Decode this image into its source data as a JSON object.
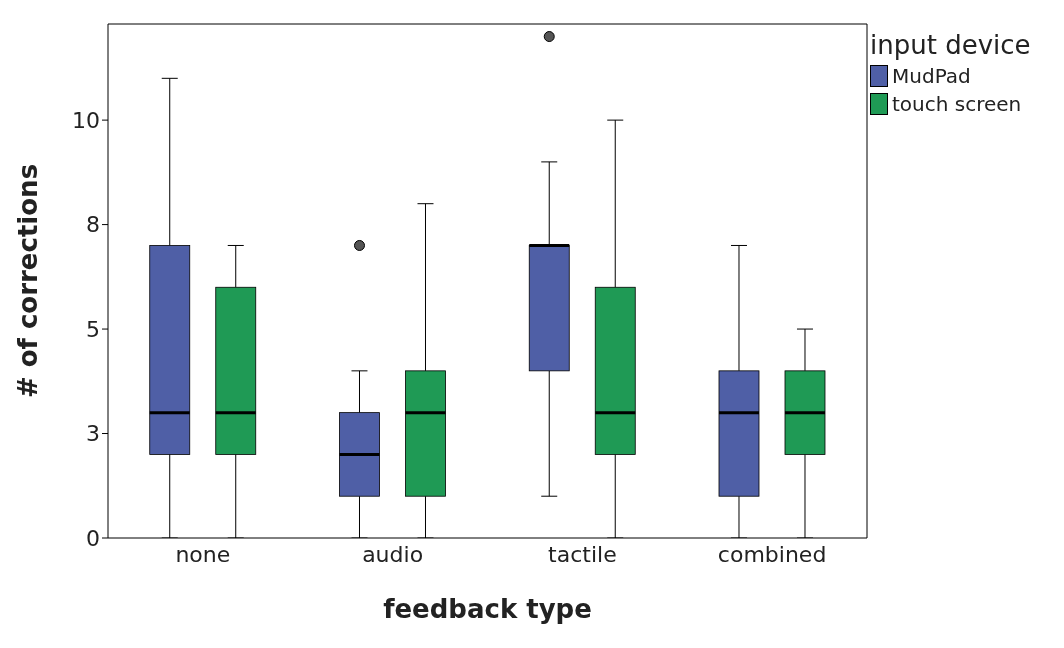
{
  "chart_data": {
    "type": "box",
    "xlabel": "feedback type",
    "ylabel": "# of corrections",
    "legend_title": "input device",
    "legend": "top right",
    "categories": [
      "none",
      "audio",
      "tactile",
      "combined"
    ],
    "ylim": [
      0,
      12.3
    ],
    "yticks": [
      0,
      {
        "value": 2.5,
        "label": "3"
      },
      5,
      {
        "value": 7.5,
        "label": "8"
      },
      10
    ],
    "series": [
      {
        "name": "MudPad",
        "color": "#4f5fa6",
        "boxes": [
          {
            "low": 0,
            "q1": 2,
            "median": 3,
            "q3": 7,
            "high": 11
          },
          {
            "low": 0,
            "q1": 1,
            "median": 2,
            "q3": 3,
            "high": 4,
            "outliers": [
              7
            ]
          },
          {
            "low": 1,
            "q1": 4,
            "median": 7,
            "q3": 7,
            "high": 9,
            "outliers": [
              12
            ]
          },
          {
            "low": 0,
            "q1": 1,
            "median": 3,
            "q3": 4,
            "high": 7
          }
        ]
      },
      {
        "name": "touch screen",
        "color": "#1f9a55",
        "boxes": [
          {
            "low": 0,
            "q1": 2,
            "median": 3,
            "q3": 6,
            "high": 7
          },
          {
            "low": 0,
            "q1": 1,
            "median": 3,
            "q3": 4,
            "high": 8
          },
          {
            "low": 0,
            "q1": 2,
            "median": 3,
            "q3": 6,
            "high": 10
          },
          {
            "low": 0,
            "q1": 2,
            "median": 3,
            "q3": 4,
            "high": 5
          }
        ]
      }
    ]
  }
}
